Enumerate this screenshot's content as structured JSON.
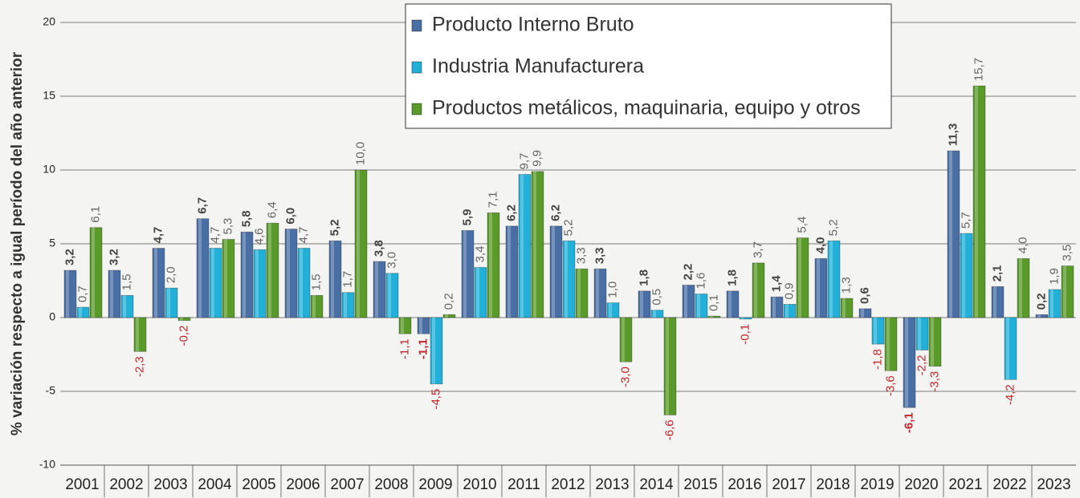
{
  "chart_data": {
    "type": "bar",
    "y_label": "% variación respecto a igual período del año anterior",
    "categories": [
      "2001",
      "2002",
      "2003",
      "2004",
      "2005",
      "2006",
      "2007",
      "2008",
      "2009",
      "2010",
      "2011",
      "2012",
      "2013",
      "2014",
      "2015",
      "2016",
      "2017",
      "2018",
      "2019",
      "2020",
      "2021",
      "2022",
      "2023"
    ],
    "series": [
      {
        "name": "Producto Interno Bruto",
        "color": "#4a6fa5",
        "values": [
          3.2,
          3.2,
          4.7,
          6.7,
          5.8,
          6.0,
          5.2,
          3.8,
          -1.1,
          5.9,
          6.2,
          6.2,
          3.3,
          1.8,
          2.2,
          1.8,
          1.4,
          4.0,
          0.6,
          -6.1,
          11.3,
          2.1,
          0.2
        ],
        "value_labels": [
          "3,2",
          "3,2",
          "4,7",
          "6,7",
          "5,8",
          "6,0",
          "5,2",
          "3,8",
          "-1,1",
          "5,9",
          "6,2",
          "6,2",
          "3,3",
          "1,8",
          "2,2",
          "1,8",
          "1,4",
          "4,0",
          "0,6",
          "-6,1",
          "11,3",
          "2,1",
          "0,2"
        ]
      },
      {
        "name": "Industria Manufacturera",
        "color": "#22b0d8",
        "values": [
          0.7,
          1.5,
          2.0,
          4.7,
          4.6,
          4.7,
          1.7,
          3.0,
          -4.5,
          3.4,
          9.7,
          5.2,
          1.0,
          0.5,
          1.6,
          -0.1,
          0.9,
          5.2,
          -1.8,
          -2.2,
          5.7,
          -4.2,
          1.9
        ],
        "value_labels": [
          "0,7",
          "1,5",
          "2,0",
          "4,7",
          "4,6",
          "4,7",
          "1,7",
          "3,0",
          "-4,5",
          "3,4",
          "9,7",
          "5,2",
          "1,0",
          "0,5",
          "1,6",
          "-0,1",
          "0,9",
          "5,2",
          "-1,8",
          "-2,2",
          "5,7",
          "-4,2",
          "1,9"
        ]
      },
      {
        "name": "Productos metálicos, maquinaria, equipo y otros",
        "color": "#5a9a2a",
        "values": [
          6.1,
          -2.3,
          -0.2,
          5.3,
          6.4,
          1.5,
          10.0,
          -1.1,
          0.2,
          7.1,
          9.9,
          3.3,
          -3.0,
          -6.6,
          0.1,
          3.7,
          5.4,
          1.3,
          -3.6,
          -3.3,
          15.7,
          4.0,
          3.5
        ],
        "value_labels": [
          "6,1",
          "-2,3",
          "-0,2",
          "5,3",
          "6,4",
          "1,5",
          "10,0",
          "-1,1",
          "0,2",
          "7,1",
          "9,9",
          "3,3",
          "-3,0",
          "-6,6",
          "0,1",
          "3,7",
          "5,4",
          "1,3",
          "-3,6",
          "-3,3",
          "15,7",
          "4,0",
          "3,5"
        ]
      }
    ],
    "ylim": [
      -10,
      20
    ],
    "yticks": [
      -10,
      -5,
      0,
      5,
      10,
      15,
      20
    ],
    "grid": true,
    "legend": "top"
  }
}
